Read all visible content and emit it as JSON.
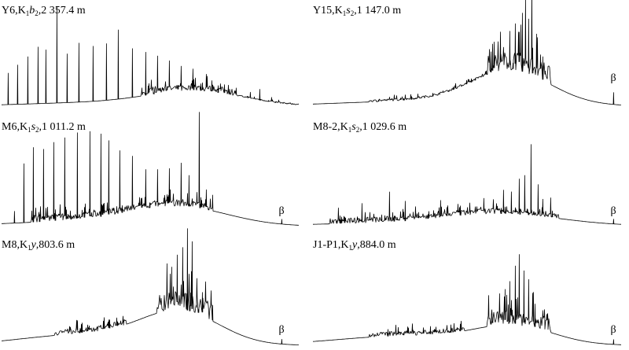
{
  "panels": [
    {
      "prefix": "Y6,K",
      "sub": "1",
      "member": "b",
      "member_sub": "2",
      "suffix": ",2 357.4 m"
    },
    {
      "prefix": "Y15,K",
      "sub": "1",
      "member": "s",
      "member_sub": "2",
      "suffix": ",1 147.0 m",
      "marker": "β"
    },
    {
      "prefix": "M6,K",
      "sub": "1",
      "member": "s",
      "member_sub": "2",
      "suffix": ",1 011.2 m",
      "marker": "β"
    },
    {
      "prefix": "M8-2,K",
      "sub": "1",
      "member": "s",
      "member_sub": "2",
      "suffix": ",1 029.6 m",
      "marker": "β"
    },
    {
      "prefix": "M8,K",
      "sub": "1",
      "member": "y",
      "suffix": ",803.6 m",
      "marker": "β"
    },
    {
      "prefix": "J1-P1,K",
      "sub": "1",
      "member": "y",
      "suffix": ",884.0 m",
      "marker": "β"
    }
  ]
}
